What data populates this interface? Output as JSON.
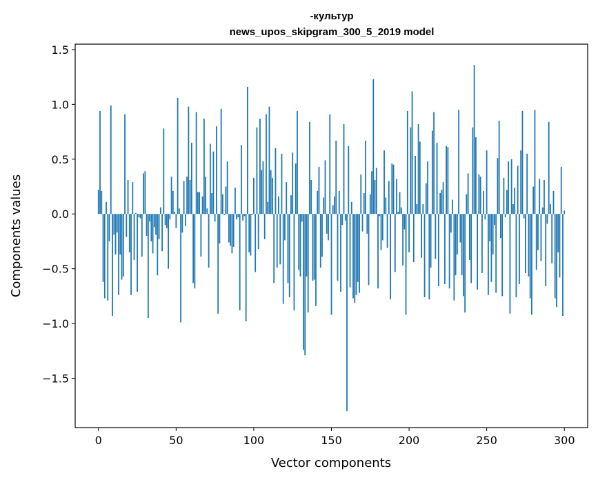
{
  "chart_data": {
    "type": "bar",
    "title": "-культур",
    "subtitle": "news_upos_skipgram_300_5_2019 model",
    "xlabel": "Vector components",
    "ylabel": "Components values",
    "xlim": [
      -15,
      315
    ],
    "ylim": [
      -1.95,
      1.55
    ],
    "x_ticks": [
      0,
      50,
      100,
      150,
      200,
      250,
      300
    ],
    "x_tick_labels": [
      "0",
      "50",
      "100",
      "150",
      "200",
      "250",
      "300"
    ],
    "y_ticks": [
      -1.5,
      -1.0,
      -0.5,
      0.0,
      0.5,
      1.0,
      1.5
    ],
    "y_tick_labels": [
      "−1.5",
      "−1.0",
      "−0.5",
      "0.0",
      "0.5",
      "1.0",
      "1.5"
    ],
    "bar_color": "#1f77b4",
    "grid": false,
    "values": [
      0.22,
      0.94,
      0.21,
      -0.62,
      -0.77,
      0.11,
      -0.79,
      -0.25,
      0.99,
      -0.93,
      -0.19,
      -0.37,
      -0.17,
      -0.74,
      -0.37,
      -0.6,
      -0.57,
      0.91,
      -0.21,
      0.31,
      -0.35,
      -0.74,
      0.29,
      -0.42,
      0.01,
      -0.71,
      -0.03,
      -0.04,
      -0.39,
      0.37,
      0.39,
      -0.2,
      -0.95,
      -0.07,
      -0.25,
      -0.36,
      -0.12,
      -0.19,
      -0.56,
      -0.23,
      0.06,
      -0.34,
      0.78,
      -0.1,
      -0.13,
      -0.5,
      -0.05,
      0.34,
      0.21,
      0.02,
      -0.13,
      1.06,
      0.05,
      -0.99,
      -0.17,
      0.3,
      -0.11,
      0.34,
      0.98,
      0.31,
      0.65,
      -0.63,
      -0.68,
      0.93,
      0.2,
      0.2,
      -0.39,
      0.16,
      0.87,
      0.34,
      0.05,
      -0.49,
      0.64,
      0.19,
      0.57,
      -0.07,
      0.8,
      -0.91,
      -0.27,
      0.96,
      0.18,
      -0.01,
      0.25,
      0.48,
      -0.26,
      -0.29,
      -0.36,
      -0.3,
      0.24,
      -0.05,
      -0.03,
      -0.88,
      0.63,
      -0.06,
      -0.02,
      -0.98,
      1.16,
      -0.35,
      -0.38,
      -0.01,
      0.33,
      -0.53,
      0.79,
      -0.32,
      0.87,
      0.4,
      0.48,
      -0.23,
      0.91,
      0.11,
      0.98,
      0.4,
      0.33,
      -0.63,
      0.6,
      -0.49,
      0.16,
      -0.46,
      0.55,
      -0.82,
      -0.24,
      0.29,
      -0.63,
      -0.76,
      0.17,
      0.56,
      -0.88,
      0.46,
      0.94,
      -0.51,
      -0.57,
      -0.07,
      -1.24,
      -1.29,
      -0.57,
      -0.9,
      0.84,
      0.31,
      -0.61,
      -0.6,
      -0.84,
      0.21,
      0.43,
      -0.49,
      -0.39,
      0.15,
      0.49,
      -0.18,
      -0.24,
      0.91,
      -0.92,
      0.08,
      0.16,
      0.67,
      -0.61,
      0.21,
      -0.71,
      -0.1,
      0.82,
      -0.06,
      -1.8,
      0.62,
      -0.67,
      0.11,
      -0.77,
      -0.81,
      -0.74,
      -0.62,
      -0.72,
      0.36,
      -0.16,
      0.19,
      0.67,
      -0.18,
      -0.65,
      0.18,
      0.39,
      1.23,
      0.31,
      0.42,
      -0.68,
      -0.02,
      -0.33,
      -0.24,
      0.58,
      0.15,
      -0.31,
      0.3,
      -0.78,
      0.46,
      0.45,
      -0.53,
      0.32,
      0.02,
      0.2,
      0.06,
      -0.47,
      -0.14,
      -0.92,
      0.94,
      -0.35,
      0.79,
      1.12,
      -0.44,
      0.53,
      0.09,
      0.82,
      0.66,
      -0.4,
      0.09,
      -0.76,
      0.28,
      0.48,
      -0.78,
      -0.49,
      0.76,
      0.93,
      -0.41,
      0.65,
      -0.66,
      0.19,
      0.22,
      0.29,
      -0.64,
      0.62,
      0.61,
      -0.68,
      -0.17,
      0.13,
      -0.79,
      -0.56,
      -0.37,
      0.95,
      -0.26,
      -0.56,
      -0.75,
      -0.9,
      0.18,
      0.37,
      -0.42,
      -0.63,
      0.79,
      1.36,
      0.7,
      -0.69,
      0.36,
      0.34,
      -0.54,
      0.21,
      -0.05,
      0.58,
      -0.74,
      -0.25,
      -0.62,
      -0.37,
      -0.1,
      -0.72,
      0.51,
      0.85,
      -0.22,
      -0.75,
      0.33,
      -0.03,
      0.22,
      0.48,
      -0.91,
      0.5,
      0.09,
      0.24,
      -0.76,
      0.44,
      -0.64,
      0.58,
      0.94,
      -0.04,
      -0.54,
      0.55,
      -0.57,
      -0.77,
      -0.92,
      0.25,
      0.95,
      -0.51,
      -0.33,
      0.32,
      -0.43,
      0.06,
      0.31,
      -0.66,
      -0.09,
      0.84,
      0.09,
      -0.45,
      0.21,
      -0.77,
      -0.85,
      -0.35,
      -0.58,
      0.43,
      -0.93,
      0.03
    ]
  }
}
